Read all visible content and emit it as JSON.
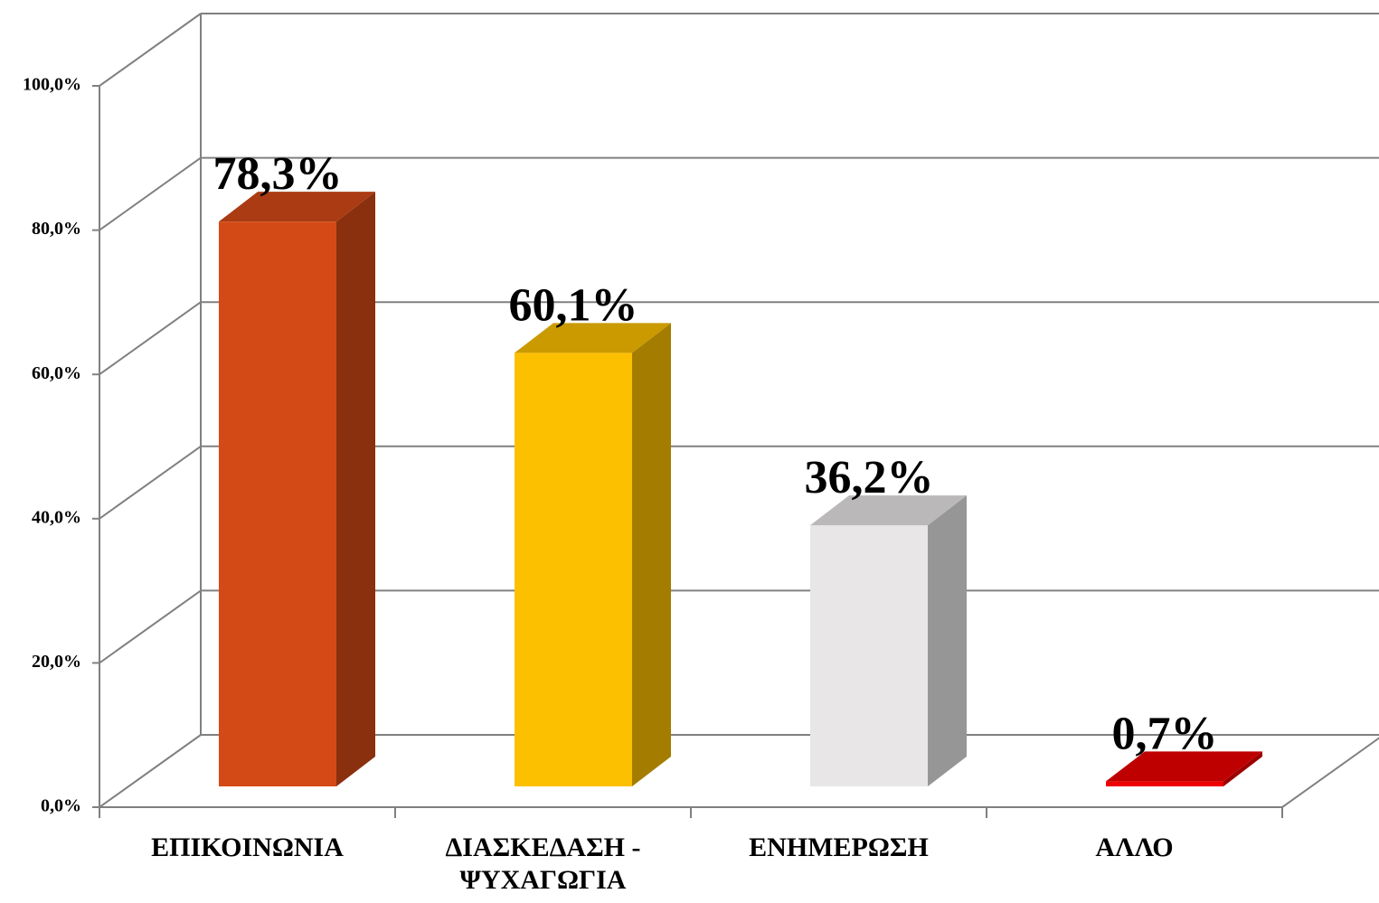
{
  "chart_data": {
    "type": "bar3d",
    "categories": [
      "ΕΠΙΚΟΙΝΩΝΙΑ",
      "ΔΙΑΣΚΕΔΑΣΗ -\nΨΥΧΑΓΩΓΙΑ",
      "ΕΝΗΜΕΡΩΣΗ",
      "ΑΛΛΟ"
    ],
    "values": [
      78.3,
      60.1,
      36.2,
      0.7
    ],
    "value_labels": [
      "78,3%",
      "60,1%",
      "36,2%",
      "0,7%"
    ],
    "colors": [
      "#d44a17",
      "#fdc000",
      "#e8e6e6",
      "#ee0000"
    ],
    "ylim": [
      0,
      100
    ],
    "yticks": [
      {
        "value": 0,
        "label": "0,0%"
      },
      {
        "value": 20,
        "label": "20,0%"
      },
      {
        "value": 40,
        "label": "40,0%"
      },
      {
        "value": 60,
        "label": "60,0%"
      },
      {
        "value": 80,
        "label": "80,0%"
      },
      {
        "value": 100,
        "label": "100,0%"
      }
    ],
    "grid": true
  }
}
